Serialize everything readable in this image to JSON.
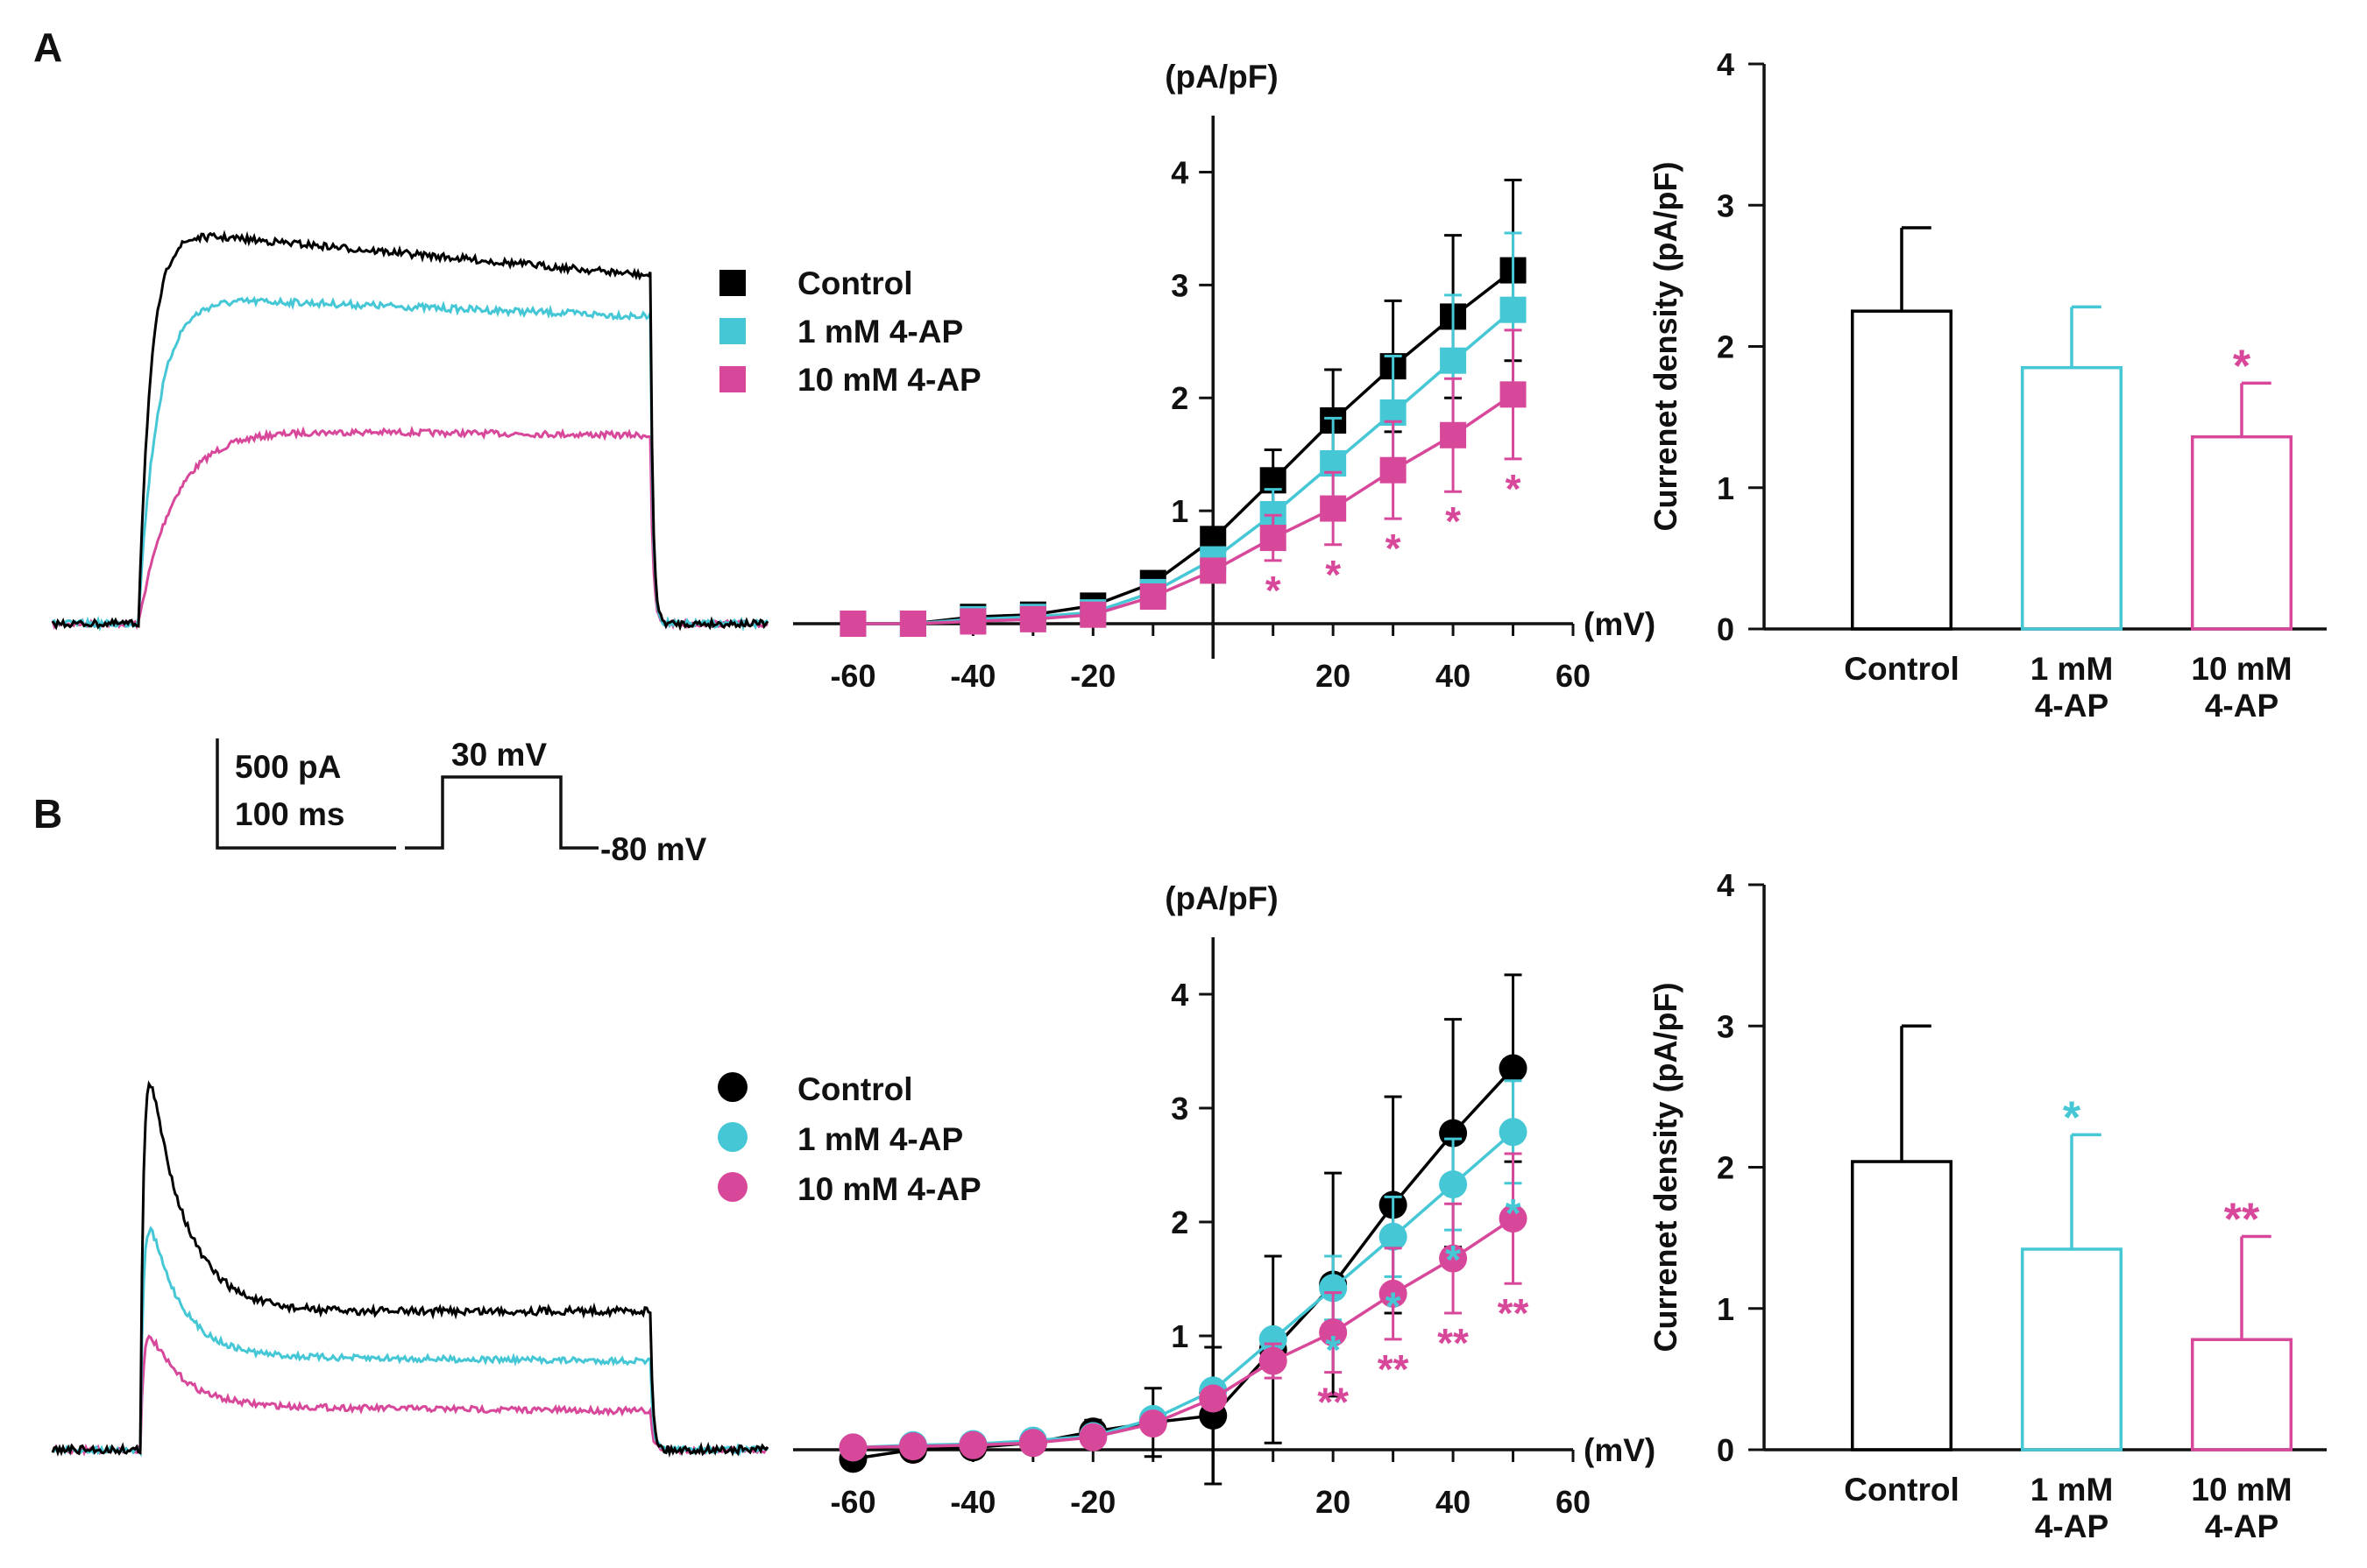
{
  "colors": {
    "control": "#000000",
    "ap1": "#45c7d6",
    "ap10": "#d8489a"
  },
  "panels": {
    "a": "A",
    "b": "B"
  },
  "scale_bar": {
    "current": "500 pA",
    "time": "100 ms"
  },
  "protocol": {
    "step": "30 mV",
    "hold": "-80 mV"
  },
  "legend": [
    "Control",
    "1 mM 4-AP",
    "10 mM 4-AP"
  ],
  "chart_data": [
    {
      "id": "A-iv",
      "type": "line",
      "marker": "square",
      "title": "",
      "xlabel": "(mV)",
      "ylabel": "(pA/pF)",
      "xlim": [
        -70,
        60
      ],
      "ylim": [
        0,
        4.5
      ],
      "xticks": [
        -60,
        -40,
        -20,
        20,
        40,
        60
      ],
      "yticks": [
        1,
        2,
        3,
        4
      ],
      "x": [
        -60,
        -50,
        -40,
        -30,
        -20,
        -10,
        0,
        10,
        20,
        30,
        40,
        50
      ],
      "series": [
        {
          "name": "Control",
          "values": [
            0,
            0,
            0.06,
            0.08,
            0.16,
            0.36,
            0.75,
            1.27,
            1.8,
            2.28,
            2.72,
            3.13
          ],
          "err": [
            0,
            0,
            0,
            0,
            0,
            0,
            0.1,
            0.27,
            0.45,
            0.58,
            0.72,
            0.8
          ]
        },
        {
          "name": "1 mM 4-AP",
          "values": [
            0,
            0,
            0.04,
            0.06,
            0.1,
            0.28,
            0.57,
            0.97,
            1.42,
            1.87,
            2.33,
            2.78
          ],
          "err": [
            0,
            0,
            0,
            0,
            0,
            0,
            0,
            0.22,
            0.4,
            0.5,
            0.58,
            0.68
          ]
        },
        {
          "name": "10 mM 4-AP",
          "values": [
            0,
            0,
            0.02,
            0.04,
            0.08,
            0.24,
            0.47,
            0.76,
            1.02,
            1.36,
            1.67,
            2.03
          ],
          "err": [
            0,
            0,
            0,
            0,
            0,
            0,
            0.1,
            0.2,
            0.32,
            0.43,
            0.5,
            0.57
          ]
        }
      ],
      "significance": [
        {
          "series": "10 mM 4-AP",
          "labels": [
            "",
            "",
            "",
            "",
            "",
            "",
            "",
            "*",
            "*",
            "*",
            "*",
            "*"
          ]
        }
      ]
    },
    {
      "id": "A-bar",
      "type": "bar",
      "title": "",
      "xlabel": "",
      "ylabel": "Currenet  density (pA/pF)",
      "ylim": [
        0,
        4
      ],
      "yticks": [
        0,
        1,
        2,
        3,
        4
      ],
      "categories": [
        [
          "Control"
        ],
        [
          "1 mM",
          "4-AP"
        ],
        [
          "10 mM",
          "4-AP"
        ]
      ],
      "values": [
        2.25,
        1.85,
        1.36
      ],
      "err": [
        0.59,
        0.43,
        0.38
      ],
      "significance": [
        "",
        "",
        "*"
      ]
    },
    {
      "id": "B-iv",
      "type": "line",
      "marker": "circle",
      "title": "",
      "xlabel": "(mV)",
      "ylabel": "(pA/pF)",
      "xlim": [
        -70,
        60
      ],
      "ylim": [
        0,
        4.5
      ],
      "xticks": [
        -60,
        -40,
        -20,
        20,
        40,
        60
      ],
      "yticks": [
        1,
        2,
        3,
        4
      ],
      "x": [
        -60,
        -50,
        -40,
        -30,
        -20,
        -10,
        0,
        10,
        20,
        30,
        40,
        50
      ],
      "series": [
        {
          "name": "Control",
          "values": [
            -0.08,
            0,
            0.02,
            0.06,
            0.16,
            0.24,
            0.3,
            0.88,
            1.45,
            2.15,
            2.78,
            3.35
          ],
          "err": [
            0,
            0,
            0,
            0,
            0.1,
            0.3,
            0.6,
            0.82,
            0.98,
            0.95,
            1.0,
            0.82
          ]
        },
        {
          "name": "1 mM 4-AP",
          "values": [
            0.02,
            0.04,
            0.05,
            0.08,
            0.12,
            0.27,
            0.52,
            0.97,
            1.42,
            1.87,
            2.33,
            2.79
          ],
          "err": [
            0,
            0,
            0,
            0,
            0,
            0,
            0,
            0,
            0.28,
            0.35,
            0.4,
            0.45
          ]
        },
        {
          "name": "10 mM 4-AP",
          "values": [
            0.02,
            0.03,
            0.04,
            0.06,
            0.11,
            0.23,
            0.45,
            0.78,
            1.03,
            1.37,
            1.68,
            2.03
          ],
          "err": [
            0,
            0,
            0,
            0,
            0,
            0,
            0,
            0.15,
            0.35,
            0.4,
            0.48,
            0.57
          ]
        }
      ],
      "significance": [
        {
          "series": "1 mM 4-AP",
          "labels": [
            "",
            "",
            "",
            "",
            "",
            "",
            "",
            "",
            "*",
            "*",
            "*",
            "*"
          ]
        },
        {
          "series": "10 mM 4-AP",
          "labels": [
            "",
            "",
            "",
            "",
            "",
            "",
            "",
            "",
            "**",
            "**",
            "**",
            "**"
          ]
        }
      ]
    },
    {
      "id": "B-bar",
      "type": "bar",
      "title": "",
      "xlabel": "",
      "ylabel": "Currenet  density (pA/pF)",
      "ylim": [
        0,
        4
      ],
      "yticks": [
        0,
        1,
        2,
        3,
        4
      ],
      "categories": [
        [
          "Control"
        ],
        [
          "1 mM",
          "4-AP"
        ],
        [
          "10 mM",
          "4-AP"
        ]
      ],
      "values": [
        2.04,
        1.42,
        0.78
      ],
      "err": [
        0.96,
        0.81,
        0.73
      ],
      "significance": [
        "",
        "*",
        "**"
      ]
    }
  ]
}
